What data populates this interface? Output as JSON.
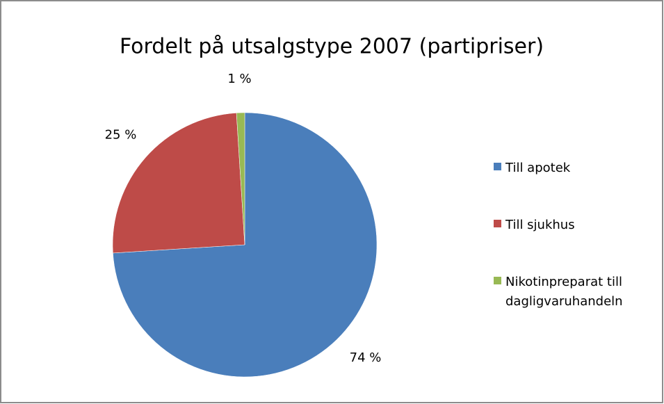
{
  "chart_data": {
    "type": "pie",
    "title": "Fordelt på utsalgstype 2007 (partipriser)",
    "categories": [
      "Till apotek",
      "Till sjukhus",
      "Nikotinpreparat till dagligvaruhandeln"
    ],
    "values": [
      74,
      25,
      1
    ],
    "value_labels": [
      "74 %",
      "25 %",
      "1 %"
    ],
    "colors": [
      "#4a7ebb",
      "#be4b48",
      "#98b954"
    ],
    "legend": "right"
  }
}
